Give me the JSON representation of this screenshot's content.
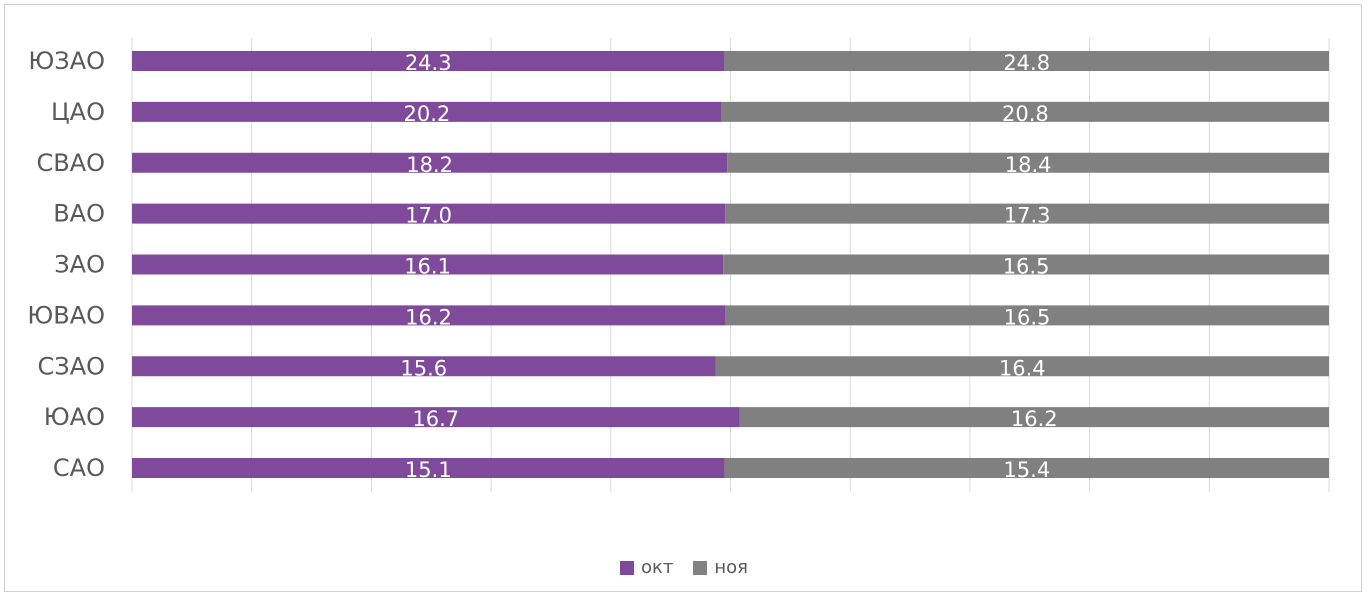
{
  "chart_data": {
    "type": "bar",
    "orientation": "horizontal",
    "stacking": "percent",
    "categories": [
      "ЮЗАО",
      "ЦАО",
      "СВАО",
      "ВАО",
      "ЗАО",
      "ЮВАО",
      "СЗАО",
      "ЮАО",
      "САО"
    ],
    "series": [
      {
        "name": "окт",
        "color": "#7f4a9a",
        "values": [
          24.3,
          20.2,
          18.2,
          17.0,
          16.1,
          16.2,
          15.6,
          16.7,
          15.1
        ],
        "labels": [
          "24.3",
          "20.2",
          "18.2",
          "17.0",
          "16.1",
          "16.2",
          "15.6",
          "16.7",
          "15.1"
        ]
      },
      {
        "name": "ноя",
        "color": "#808080",
        "values": [
          24.8,
          20.8,
          18.4,
          17.3,
          16.5,
          16.5,
          16.4,
          16.2,
          15.4
        ],
        "labels": [
          "24.8",
          "20.8",
          "18.4",
          "17.3",
          "16.5",
          "16.5",
          "16.4",
          "16.2",
          "15.4"
        ]
      }
    ],
    "xlim": [
      0,
      100
    ],
    "grid": true,
    "legend_position": "bottom"
  }
}
